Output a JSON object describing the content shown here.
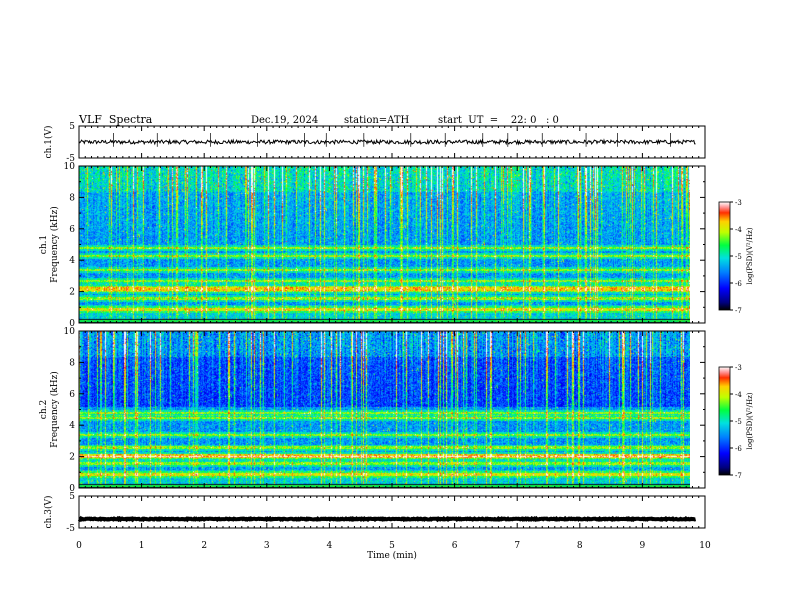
{
  "header": {
    "title": "VLF  Spectra",
    "date": "Dec.19, 2024",
    "station": "station=ATH",
    "start_ut": "start  UT  =    22: 0   : 0"
  },
  "chart_data": [
    {
      "type": "line",
      "name": "ch1-waveform",
      "ylabel": "ch.1(V)",
      "yticks": [
        "5",
        "-5"
      ],
      "ylim": [
        -5,
        5
      ],
      "xlim": [
        0,
        10
      ],
      "baseline": 0,
      "noise_amplitude": 0.6,
      "spike_times": [
        0.55,
        1.25,
        2.1,
        2.85,
        3.6,
        3.95,
        4.55,
        5.3,
        5.85,
        6.45,
        6.85,
        7.4,
        8.1,
        8.6,
        9.45
      ]
    },
    {
      "type": "heatmap",
      "name": "ch1-spectrogram",
      "ylabel": "ch.1\nFrequency (kHz)",
      "yticks": [
        "10",
        "8",
        "6",
        "4",
        "2",
        "0"
      ],
      "ylim": [
        0,
        10
      ],
      "xlim": [
        0,
        9.8
      ],
      "bands_khz": [
        0.9,
        1.6,
        2.1,
        2.3,
        2.7,
        3.4,
        4.3,
        4.8
      ],
      "colorbar": {
        "label": "log(PSD)(V²/Hz)",
        "ticks": [
          "-3",
          "-4",
          "-5",
          "-6",
          "-7"
        ],
        "range": [
          -7,
          -3
        ]
      }
    },
    {
      "type": "heatmap",
      "name": "ch2-spectrogram",
      "ylabel": "ch.2\nFrequency (kHz)",
      "yticks": [
        "10",
        "8",
        "6",
        "4",
        "2",
        "0"
      ],
      "ylim": [
        0,
        10
      ],
      "xlim": [
        0,
        9.8
      ],
      "bands_khz": [
        0.9,
        1.6,
        2.0,
        2.1,
        2.6,
        3.4,
        4.5,
        4.8
      ],
      "colorbar": {
        "label": "log(PSD)(V²/Hz)",
        "ticks": [
          "-3",
          "-4",
          "-5",
          "-6",
          "-7"
        ],
        "range": [
          -7,
          -3
        ]
      }
    },
    {
      "type": "line",
      "name": "ch3-waveform",
      "ylabel": "ch.3(V)",
      "yticks": [
        "5",
        "-5"
      ],
      "ylim": [
        -5,
        5
      ],
      "xlim": [
        0,
        10
      ],
      "baseline": -2.2,
      "noise_amplitude": 0.15,
      "xlabel": "Time  (min)",
      "xticks": [
        "0",
        "1",
        "2",
        "3",
        "4",
        "5",
        "6",
        "7",
        "8",
        "9",
        "10"
      ]
    }
  ]
}
